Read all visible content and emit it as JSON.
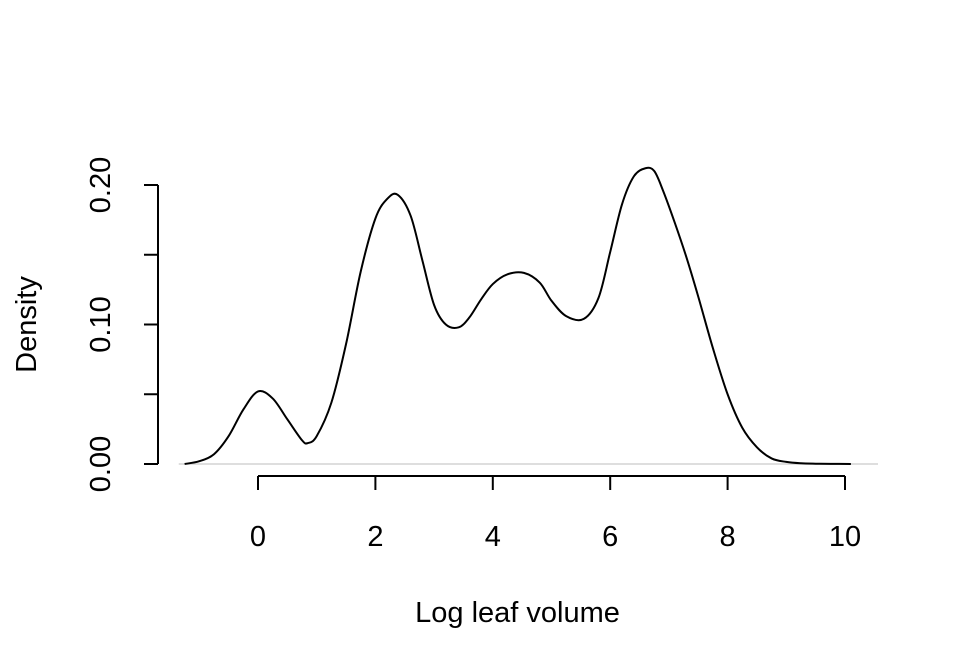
{
  "chart_data": {
    "type": "line",
    "title": "",
    "xlabel": "Log leaf volume",
    "ylabel": "Density",
    "xlim": [
      -1.35,
      10.1
    ],
    "ylim": [
      0,
      0.2
    ],
    "xticks": [
      0,
      2,
      4,
      6,
      8,
      10
    ],
    "xtick_labels": [
      "0",
      "2",
      "4",
      "6",
      "8",
      "10"
    ],
    "yticks": [
      0,
      0.05,
      0.1,
      0.15,
      0.2
    ],
    "ytick_labels": [
      "0.00",
      "",
      "0.10",
      "",
      "0.20"
    ],
    "grid": false,
    "baseline_color": "#d3d3d3",
    "series": [
      {
        "x": [
          -1.25,
          -1.0,
          -0.75,
          -0.5,
          -0.25,
          0.0,
          0.25,
          0.5,
          0.75,
          0.85,
          1.0,
          1.25,
          1.5,
          1.75,
          2.0,
          2.2,
          2.38,
          2.6,
          2.8,
          3.0,
          3.2,
          3.42,
          3.6,
          3.8,
          4.0,
          4.25,
          4.53,
          4.8,
          5.0,
          5.25,
          5.55,
          5.8,
          6.0,
          6.2,
          6.4,
          6.6,
          6.75,
          6.9,
          7.1,
          7.3,
          7.5,
          7.75,
          8.0,
          8.25,
          8.5,
          8.75,
          9.0,
          9.25,
          9.5,
          9.75,
          10.1
        ],
        "y": [
          0.0,
          0.002,
          0.007,
          0.02,
          0.039,
          0.052,
          0.047,
          0.032,
          0.017,
          0.015,
          0.02,
          0.044,
          0.086,
          0.138,
          0.176,
          0.19,
          0.193,
          0.178,
          0.146,
          0.114,
          0.1,
          0.098,
          0.105,
          0.118,
          0.129,
          0.136,
          0.137,
          0.13,
          0.117,
          0.106,
          0.104,
          0.119,
          0.152,
          0.186,
          0.206,
          0.212,
          0.21,
          0.196,
          0.173,
          0.148,
          0.12,
          0.083,
          0.05,
          0.026,
          0.012,
          0.004,
          0.0015,
          0.0005,
          0.0002,
          0.0001,
          0.0
        ]
      }
    ]
  }
}
